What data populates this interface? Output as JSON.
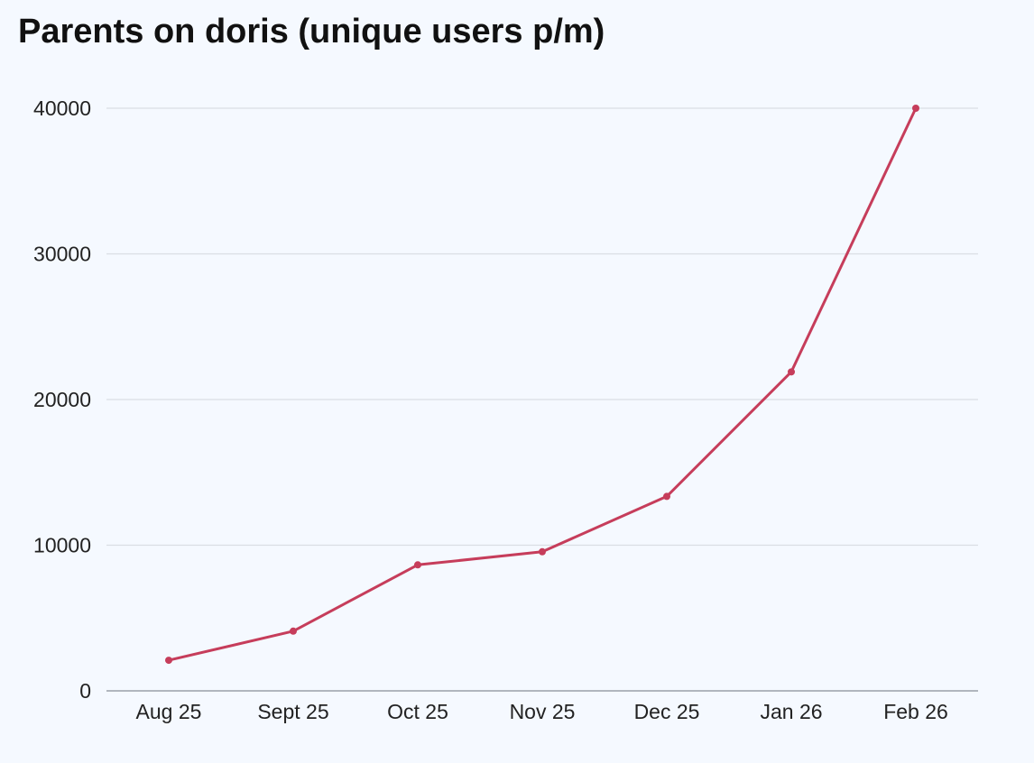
{
  "chart_data": {
    "type": "line",
    "title": "Parents on doris (unique users p/m)",
    "categories": [
      "Aug 25",
      "Sept 25",
      "Oct 25",
      "Nov 25",
      "Dec 25",
      "Jan 26",
      "Feb 26"
    ],
    "series": [
      {
        "values": [
          2100,
          4100,
          8650,
          9550,
          13350,
          21900,
          40000
        ]
      }
    ],
    "ylim": [
      0,
      40000
    ],
    "yticks": [
      0,
      10000,
      20000,
      30000,
      40000
    ],
    "xlabel": "",
    "ylabel": "",
    "grid": true,
    "colors": {
      "line": "#c63d5b",
      "grid": "#d9dde3",
      "axis": "#9aa0a8"
    }
  }
}
